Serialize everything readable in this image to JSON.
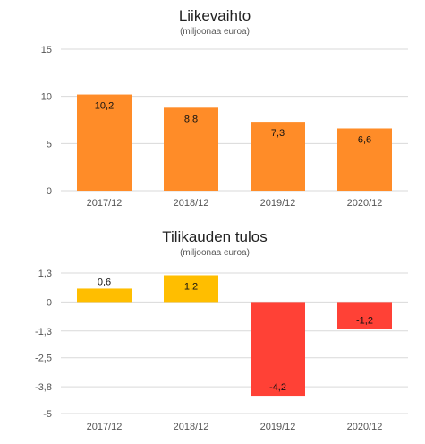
{
  "chart_data": [
    {
      "type": "bar",
      "title": "Liikevaihto",
      "subtitle": "(miljoonaa euroa)",
      "categories": [
        "2017/12",
        "2018/12",
        "2019/12",
        "2020/12"
      ],
      "values": [
        10.2,
        8.8,
        7.3,
        6.6
      ],
      "value_labels": [
        "10,2",
        "8,8",
        "7,3",
        "6,6"
      ],
      "ylim": [
        0,
        15
      ],
      "yticks": [
        0,
        5,
        10,
        15
      ],
      "ytick_labels": [
        "0",
        "5",
        "10",
        "15"
      ],
      "grid": true,
      "colors": [
        "#ff8c28",
        "#ff8c28",
        "#ff8c28",
        "#ff8c28"
      ]
    },
    {
      "type": "bar",
      "title": "Tilikauden tulos",
      "subtitle": "(miljoonaa euroa)",
      "categories": [
        "2017/12",
        "2018/12",
        "2019/12",
        "2020/12"
      ],
      "values": [
        0.6,
        1.2,
        -4.2,
        -1.2
      ],
      "value_labels": [
        "0,6",
        "1,2",
        "-4,2",
        "-1,2"
      ],
      "ylim": [
        -5,
        1.3
      ],
      "yticks": [
        1.3,
        0,
        -1.3,
        -2.5,
        -3.8,
        -5
      ],
      "ytick_labels": [
        "1,3",
        "0",
        "-1,3",
        "-2,5",
        "-3,8",
        "-5"
      ],
      "grid": true,
      "colors": [
        "#ffbe00",
        "#ffbe00",
        "#ff4136",
        "#ff4136"
      ]
    }
  ]
}
